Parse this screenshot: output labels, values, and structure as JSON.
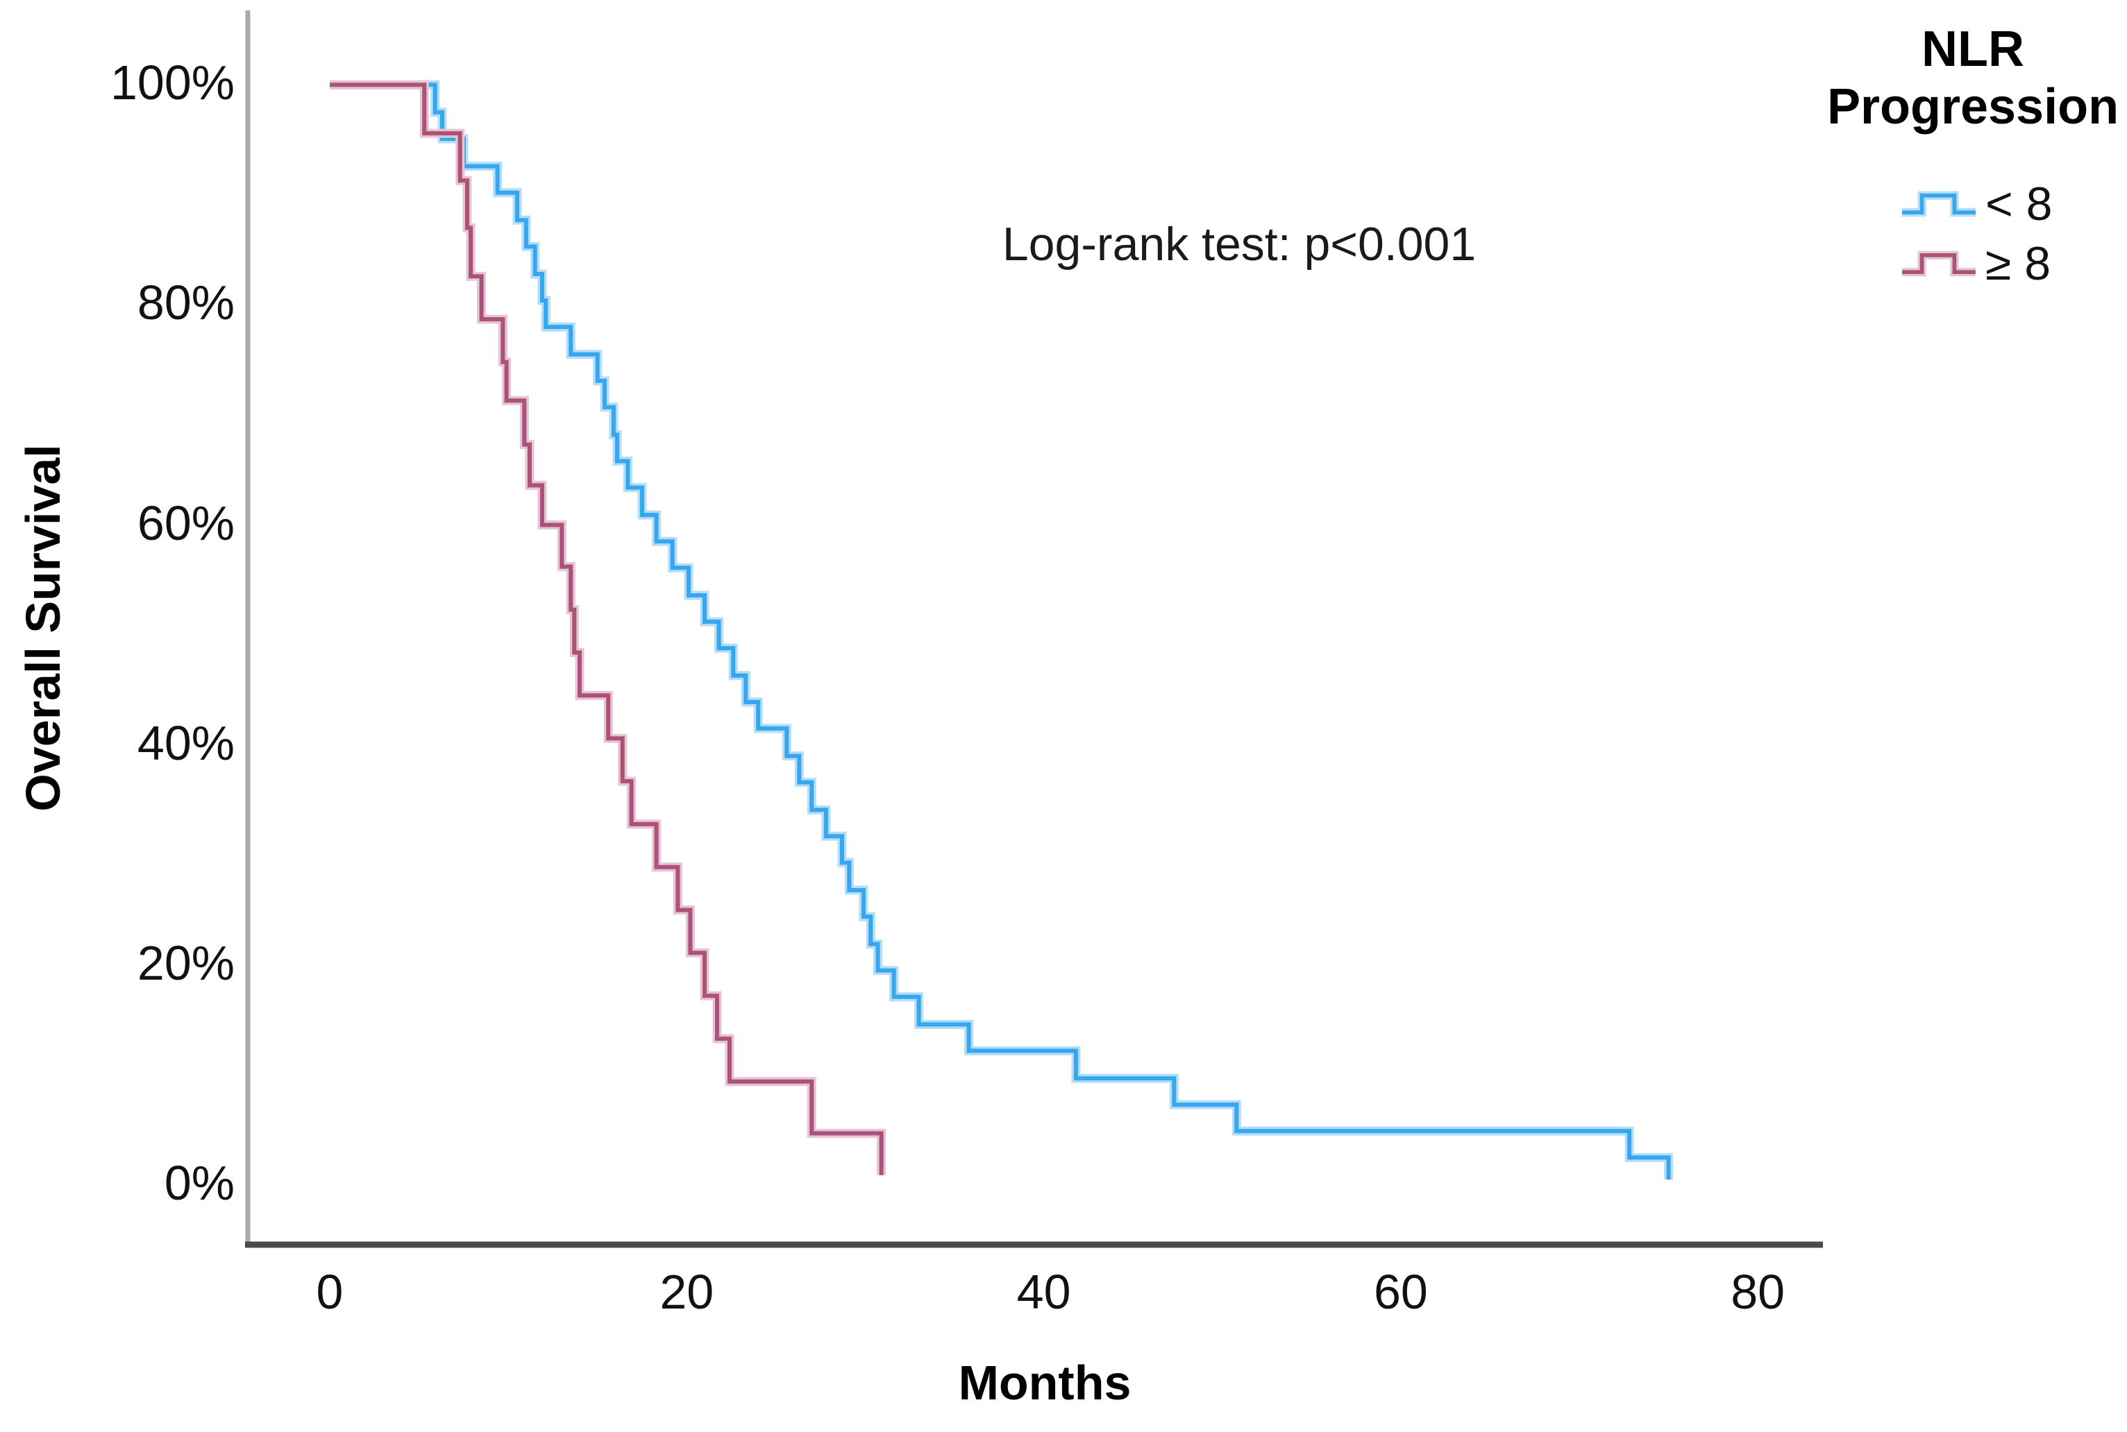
{
  "chart_data": {
    "type": "line",
    "subtype": "kaplan-meier-step",
    "title": "",
    "xlabel": "Months",
    "ylabel": "Overall Survival",
    "annotation": "Log-rank test: p<0.001",
    "legend_title_line1": "NLR",
    "legend_title_line2": "Progression",
    "x_tick_values": [
      0,
      20,
      40,
      60,
      80
    ],
    "x_tick_labels": [
      "0",
      "20",
      "40",
      "60",
      "80"
    ],
    "y_tick_values": [
      100,
      80,
      60,
      40,
      20,
      0
    ],
    "y_tick_labels": [
      "100%",
      "80%",
      "60%",
      "40%",
      "20%",
      "0%"
    ],
    "xlim": [
      -4.6,
      85
    ],
    "ylim": [
      0,
      100
    ],
    "grid": false,
    "legend_position": "top-right",
    "axis_colors": {
      "y_axis_line": "#a9a9a9",
      "x_axis_line": "#4a4a4a"
    },
    "series": [
      {
        "name": "< 8",
        "color": "#36a6ef",
        "halo_color": "#b3ddf9",
        "points": [
          [
            0,
            100
          ],
          [
            5.9,
            97.5
          ],
          [
            6.3,
            95.1
          ],
          [
            7.5,
            92.6
          ],
          [
            9.4,
            90.2
          ],
          [
            10.5,
            87.7
          ],
          [
            11.0,
            85.3
          ],
          [
            11.5,
            82.8
          ],
          [
            11.9,
            80.4
          ],
          [
            12.1,
            78.0
          ],
          [
            13.5,
            75.5
          ],
          [
            15.0,
            73.1
          ],
          [
            15.4,
            70.7
          ],
          [
            15.9,
            68.2
          ],
          [
            16.1,
            65.8
          ],
          [
            16.7,
            63.4
          ],
          [
            17.5,
            60.9
          ],
          [
            18.3,
            58.5
          ],
          [
            19.2,
            56.1
          ],
          [
            20.1,
            53.6
          ],
          [
            21.0,
            51.2
          ],
          [
            21.8,
            48.8
          ],
          [
            22.6,
            46.3
          ],
          [
            23.3,
            43.9
          ],
          [
            24.0,
            41.5
          ],
          [
            25.6,
            39.0
          ],
          [
            26.3,
            36.6
          ],
          [
            27.0,
            34.1
          ],
          [
            27.8,
            31.7
          ],
          [
            28.7,
            29.3
          ],
          [
            29.1,
            26.8
          ],
          [
            29.9,
            24.4
          ],
          [
            30.3,
            21.9
          ],
          [
            30.7,
            19.5
          ],
          [
            31.6,
            17.1
          ],
          [
            33.0,
            14.6
          ],
          [
            35.8,
            12.2
          ],
          [
            41.8,
            9.7
          ],
          [
            47.3,
            7.3
          ],
          [
            50.8,
            4.9
          ],
          [
            72.8,
            2.5
          ],
          [
            75.0,
            0.5
          ]
        ]
      },
      {
        "name": "≥ 8",
        "color": "#ac5279",
        "halo_color": "#e5c4d4",
        "points": [
          [
            0,
            100
          ],
          [
            5.3,
            95.6
          ],
          [
            7.3,
            91.3
          ],
          [
            7.7,
            87.0
          ],
          [
            7.9,
            82.6
          ],
          [
            8.5,
            78.7
          ],
          [
            9.7,
            74.8
          ],
          [
            9.9,
            71.3
          ],
          [
            10.9,
            67.3
          ],
          [
            11.2,
            63.6
          ],
          [
            11.9,
            60.0
          ],
          [
            13.0,
            56.2
          ],
          [
            13.5,
            52.3
          ],
          [
            13.7,
            48.4
          ],
          [
            14.0,
            44.5
          ],
          [
            15.6,
            40.6
          ],
          [
            16.4,
            36.7
          ],
          [
            16.9,
            32.8
          ],
          [
            18.3,
            28.9
          ],
          [
            19.5,
            25.0
          ],
          [
            20.2,
            21.1
          ],
          [
            21.0,
            17.2
          ],
          [
            21.7,
            13.3
          ],
          [
            22.4,
            9.4
          ],
          [
            27.0,
            4.7
          ],
          [
            30.9,
            0.9
          ]
        ]
      }
    ]
  }
}
